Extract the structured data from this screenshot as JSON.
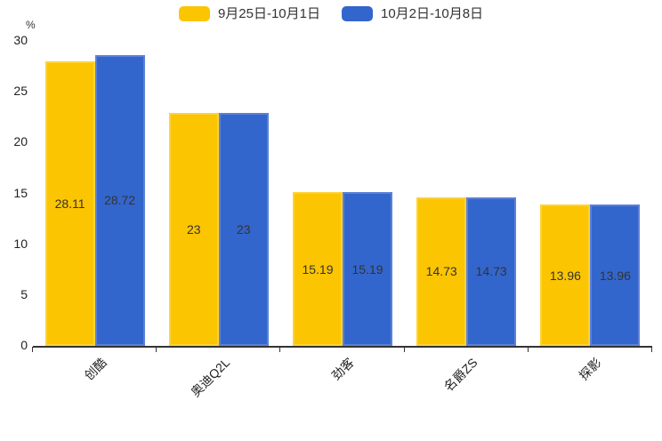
{
  "chart_data": {
    "type": "bar",
    "title": "",
    "xlabel": "",
    "ylabel": "%",
    "categories": [
      "创酷",
      "奥迪Q2L",
      "劲客",
      "名爵ZS",
      "探影"
    ],
    "series": [
      {
        "name": "9月25日-10月1日",
        "color": "#FCC502",
        "border_color": "#FDD335",
        "values": [
          28.11,
          23,
          15.19,
          14.73,
          13.96
        ]
      },
      {
        "name": "10月2日-10月8日",
        "color": "#3366CC",
        "border_color": "#5C81D8",
        "values": [
          28.72,
          23,
          15.19,
          14.73,
          13.96
        ]
      }
    ],
    "yticks": [
      "0",
      "5",
      "10",
      "15",
      "20",
      "25",
      "30"
    ],
    "ylim": [
      0,
      30
    ],
    "grid": false,
    "legend_position": "top",
    "x_tick_label_rotation": 45,
    "value_label_position": "inside-center"
  }
}
